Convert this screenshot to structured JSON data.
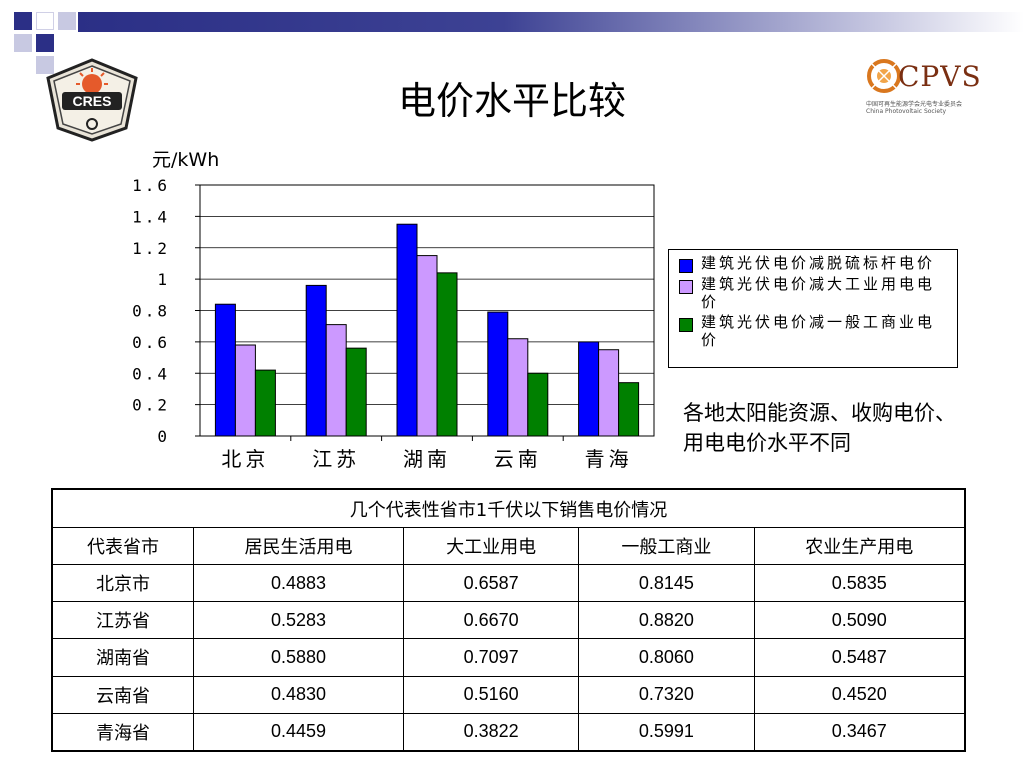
{
  "slide": {
    "title": "电价水平比较",
    "unit": "元/kWh",
    "note": "各地太阳能资源、收购电价、用电电价水平不同",
    "colors": {
      "accent_bar": "#2b2f86",
      "series_1": "#0000ff",
      "series_2": "#cc99ff",
      "series_3": "#008000"
    }
  },
  "logos": {
    "left": {
      "text": "CRES",
      "icon": "cres-logo"
    },
    "right": {
      "text": "CPVS",
      "subtitle_cn": "中国可再生能源学会光电专业委员会",
      "subtitle_en": "China Photovoltaic Society",
      "icon": "cpvs-logo"
    }
  },
  "chart_data": {
    "type": "bar",
    "categories": [
      "北京",
      "江苏",
      "湖南",
      "云南",
      "青海"
    ],
    "ylabel": "元/kWh",
    "ylim": [
      0,
      1.6
    ],
    "yticks": [
      "0",
      "0.2",
      "0.4",
      "0.6",
      "0.8",
      "1",
      "1.2",
      "1.4",
      "1.6"
    ],
    "grid": true,
    "legend_position": "right",
    "series": [
      {
        "name": "建筑光伏电价减脱硫标杆电价",
        "color": "#0000ff",
        "values": [
          0.84,
          0.96,
          1.35,
          0.79,
          0.6
        ]
      },
      {
        "name": "建筑光伏电价减大工业用电电价",
        "color": "#cc99ff",
        "values": [
          0.58,
          0.71,
          1.15,
          0.62,
          0.55
        ]
      },
      {
        "name": "建筑光伏电价减一般工商业电价",
        "color": "#008000",
        "values": [
          0.42,
          0.56,
          1.04,
          0.4,
          0.34
        ]
      }
    ]
  },
  "table": {
    "caption": "几个代表性省市1千伏以下销售电价情况",
    "headers": [
      "代表省市",
      "居民生活用电",
      "大工业用电",
      "一般工商业",
      "农业生产用电"
    ],
    "rows": [
      [
        "北京市",
        "0.4883",
        "0.6587",
        "0.8145",
        "0.5835"
      ],
      [
        "江苏省",
        "0.5283",
        "0.6670",
        "0.8820",
        "0.5090"
      ],
      [
        "湖南省",
        "0.5880",
        "0.7097",
        "0.8060",
        "0.5487"
      ],
      [
        "云南省",
        "0.4830",
        "0.5160",
        "0.7320",
        "0.4520"
      ],
      [
        "青海省",
        "0.4459",
        "0.3822",
        "0.5991",
        "0.3467"
      ]
    ]
  }
}
